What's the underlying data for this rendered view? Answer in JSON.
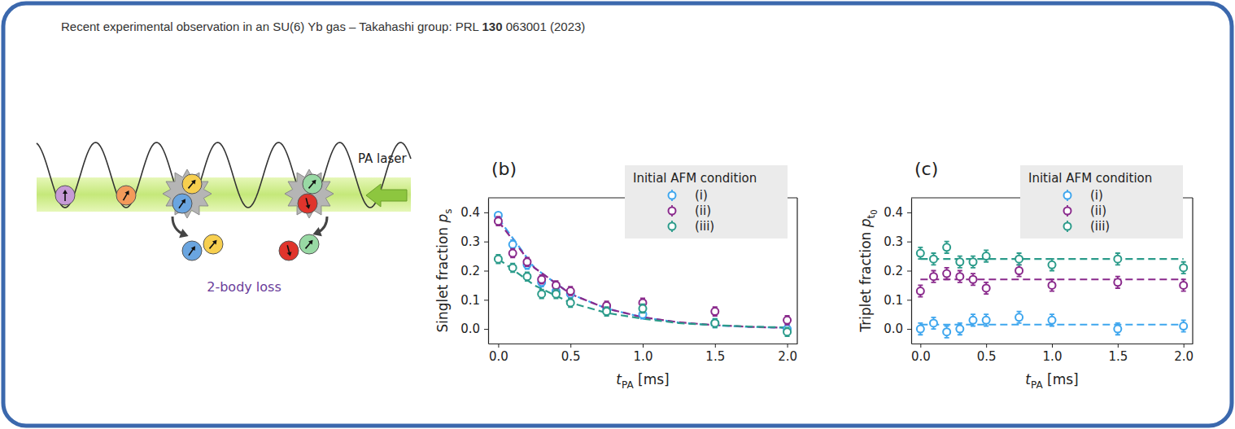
{
  "header": {
    "parts": [
      "Recent experimental observation in an SU(6) Yb gas – Takahashi group: PRL ",
      "130",
      " 063001 (2023)"
    ]
  },
  "diagram": {
    "laser_label": "PA laser",
    "loss_label": "2-body loss"
  },
  "chart_data": [
    {
      "type": "scatter",
      "title": "(b)",
      "xlabel": [
        "t",
        "PA",
        " [ms]"
      ],
      "ylabel": [
        "Singlet fraction ",
        "p",
        "s"
      ],
      "x": [
        0,
        0.1,
        0.2,
        0.3,
        0.4,
        0.5,
        0.75,
        1.0,
        1.5,
        2.0
      ],
      "xlim": [
        -0.07,
        2.07
      ],
      "xticks": [
        {
          "value": 0,
          "label": "0.0"
        },
        0.5,
        {
          "value": 1,
          "label": "1.0"
        },
        1.5,
        {
          "value": 2,
          "label": "2.0"
        }
      ],
      "ylim": [
        -0.05,
        0.45
      ],
      "yticks": [
        {
          "value": 0,
          "label": "0.0"
        },
        0.1,
        0.2,
        0.3,
        0.4
      ],
      "legend": "upper right",
      "legend_title": "Initial AFM condition",
      "series": [
        {
          "name": "(i)",
          "color": "#3ea6ee",
          "marker": "open_circle",
          "line_style": "dashed",
          "values": [
            0.39,
            0.29,
            0.22,
            0.16,
            0.13,
            0.12,
            0.07,
            0.05,
            0.02,
            0.0
          ],
          "errors": [
            0.01,
            0.015,
            0.015,
            0.015,
            0.015,
            0.015,
            0.015,
            0.015,
            0.015,
            0.015
          ],
          "fit": {
            "x": [
              0,
              0.25,
              0.5,
              0.75,
              1.0,
              1.25,
              1.5,
              1.75,
              2.0
            ],
            "values": [
              0.38,
              0.21,
              0.12,
              0.07,
              0.04,
              0.022,
              0.012,
              0.007,
              0.004
            ]
          }
        },
        {
          "name": "(ii)",
          "color": "#8a2a8c",
          "marker": "open_circle",
          "line_style": "dashed",
          "values": [
            0.37,
            0.26,
            0.23,
            0.17,
            0.15,
            0.13,
            0.08,
            0.09,
            0.06,
            0.03
          ],
          "errors": [
            0.015,
            0.015,
            0.015,
            0.015,
            0.015,
            0.015,
            0.015,
            0.015,
            0.015,
            0.015
          ],
          "fit": {
            "x": [
              0,
              0.25,
              0.5,
              0.75,
              1.0,
              1.25,
              1.5,
              1.75,
              2.0
            ],
            "values": [
              0.37,
              0.21,
              0.12,
              0.07,
              0.04,
              0.023,
              0.013,
              0.007,
              0.004
            ]
          }
        },
        {
          "name": "(iii)",
          "color": "#2b9b8a",
          "marker": "open_circle",
          "line_style": "dashed",
          "values": [
            0.24,
            0.21,
            0.18,
            0.12,
            0.12,
            0.09,
            0.06,
            0.07,
            0.02,
            -0.01
          ],
          "errors": [
            0.015,
            0.015,
            0.015,
            0.015,
            0.015,
            0.015,
            0.015,
            0.015,
            0.015,
            0.015
          ],
          "fit": {
            "x": [
              0,
              0.25,
              0.5,
              0.75,
              1.0,
              1.25,
              1.5,
              1.75,
              2.0
            ],
            "values": [
              0.24,
              0.15,
              0.09,
              0.055,
              0.035,
              0.02,
              0.013,
              0.008,
              0.005
            ]
          }
        }
      ]
    },
    {
      "type": "scatter",
      "title": "(c)",
      "xlabel": [
        "t",
        "PA",
        " [ms]"
      ],
      "ylabel": [
        "Triplet fraction ",
        "p",
        "t",
        "0"
      ],
      "x": [
        0,
        0.1,
        0.2,
        0.3,
        0.4,
        0.5,
        0.75,
        1.0,
        1.5,
        2.0
      ],
      "xlim": [
        -0.07,
        2.07
      ],
      "xticks": [
        {
          "value": 0,
          "label": "0.0"
        },
        0.5,
        {
          "value": 1,
          "label": "1.0"
        },
        1.5,
        {
          "value": 2,
          "label": "2.0"
        }
      ],
      "ylim": [
        -0.05,
        0.45
      ],
      "yticks": [
        {
          "value": 0,
          "label": "0.0"
        },
        0.1,
        0.2,
        0.3,
        0.4
      ],
      "legend": "upper right",
      "legend_title": "Initial AFM condition",
      "series": [
        {
          "name": "(i)",
          "color": "#3ea6ee",
          "marker": "open_circle",
          "line_style": "dashed",
          "values": [
            0.0,
            0.02,
            -0.01,
            0.0,
            0.03,
            0.03,
            0.04,
            0.03,
            0.0,
            0.01
          ],
          "errors": [
            0.02,
            0.02,
            0.02,
            0.02,
            0.02,
            0.02,
            0.02,
            0.02,
            0.02,
            0.02
          ],
          "fit": {
            "x": [
              0,
              2.0
            ],
            "values": [
              0.015,
              0.015
            ]
          }
        },
        {
          "name": "(ii)",
          "color": "#8a2a8c",
          "marker": "open_circle",
          "line_style": "dashed",
          "values": [
            0.13,
            0.18,
            0.19,
            0.18,
            0.17,
            0.14,
            0.2,
            0.15,
            0.16,
            0.15
          ],
          "errors": [
            0.02,
            0.02,
            0.02,
            0.02,
            0.02,
            0.02,
            0.02,
            0.02,
            0.02,
            0.02
          ],
          "fit": {
            "x": [
              0,
              2.0
            ],
            "values": [
              0.17,
              0.17
            ]
          }
        },
        {
          "name": "(iii)",
          "color": "#2b9b8a",
          "marker": "open_circle",
          "line_style": "dashed",
          "values": [
            0.26,
            0.24,
            0.28,
            0.23,
            0.23,
            0.25,
            0.24,
            0.22,
            0.24,
            0.21
          ],
          "errors": [
            0.02,
            0.02,
            0.02,
            0.02,
            0.02,
            0.02,
            0.02,
            0.02,
            0.02,
            0.02
          ],
          "fit": {
            "x": [
              0,
              2.0
            ],
            "values": [
              0.24,
              0.24
            ]
          }
        }
      ]
    }
  ]
}
